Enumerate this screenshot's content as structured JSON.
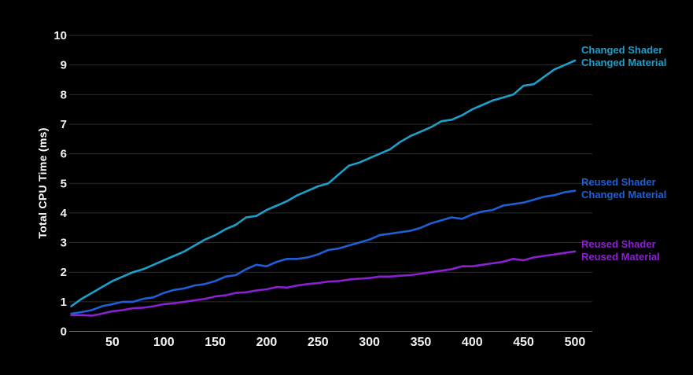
{
  "chart_data": {
    "type": "line",
    "title": "",
    "xlabel": "",
    "ylabel": "Total CPU Time (ms)",
    "xlim": [
      10,
      516
    ],
    "ylim": [
      0,
      10
    ],
    "x_ticks": [
      50,
      100,
      150,
      200,
      250,
      300,
      350,
      400,
      450,
      500
    ],
    "y_ticks": [
      0,
      1,
      2,
      3,
      4,
      5,
      6,
      7,
      8,
      9,
      10
    ],
    "grid": "horizontal-only",
    "background_color": "#000000",
    "gridline_color": "#2d2d2d",
    "axis_line_color": "#6a6a6a",
    "tick_label_color": "#f2f2f2",
    "legend_position": "right-of-line-ends",
    "x": [
      10,
      20,
      30,
      40,
      50,
      60,
      70,
      80,
      90,
      100,
      110,
      120,
      130,
      140,
      150,
      160,
      170,
      180,
      190,
      200,
      210,
      220,
      230,
      240,
      250,
      260,
      270,
      280,
      290,
      300,
      310,
      320,
      330,
      340,
      350,
      360,
      370,
      380,
      390,
      400,
      410,
      420,
      430,
      440,
      450,
      460,
      470,
      480,
      490,
      500
    ],
    "series": [
      {
        "name": "Changed Shader Changed Material",
        "legend_lines": [
          "Changed Shader",
          "Changed Material"
        ],
        "color": "#1d9fca",
        "values": [
          0.85,
          1.1,
          1.3,
          1.5,
          1.7,
          1.85,
          2.0,
          2.1,
          2.25,
          2.4,
          2.55,
          2.7,
          2.9,
          3.1,
          3.25,
          3.45,
          3.6,
          3.85,
          3.9,
          4.1,
          4.25,
          4.4,
          4.6,
          4.75,
          4.9,
          5.0,
          5.3,
          5.6,
          5.7,
          5.85,
          6.0,
          6.15,
          6.4,
          6.6,
          6.75,
          6.9,
          7.1,
          7.15,
          7.3,
          7.5,
          7.65,
          7.8,
          7.9,
          8.0,
          8.3,
          8.35,
          8.6,
          8.85,
          9.0,
          9.15
        ]
      },
      {
        "name": "Reused Shader Changed Material",
        "legend_lines": [
          "Reused Shader",
          "Changed Material"
        ],
        "color": "#1e5fd8",
        "values": [
          0.6,
          0.65,
          0.72,
          0.85,
          0.92,
          1.0,
          1.0,
          1.1,
          1.15,
          1.3,
          1.4,
          1.45,
          1.55,
          1.6,
          1.7,
          1.85,
          1.9,
          2.1,
          2.25,
          2.2,
          2.35,
          2.45,
          2.45,
          2.5,
          2.6,
          2.75,
          2.8,
          2.9,
          3.0,
          3.1,
          3.25,
          3.3,
          3.35,
          3.4,
          3.5,
          3.65,
          3.75,
          3.85,
          3.8,
          3.95,
          4.05,
          4.1,
          4.25,
          4.3,
          4.35,
          4.45,
          4.55,
          4.6,
          4.7,
          4.75
        ]
      },
      {
        "name": "Reused Shader Reused Material",
        "legend_lines": [
          "Reused Shader",
          "Reused Material"
        ],
        "color": "#8c1fd4",
        "values": [
          0.55,
          0.55,
          0.53,
          0.6,
          0.68,
          0.72,
          0.78,
          0.8,
          0.85,
          0.92,
          0.95,
          1.0,
          1.05,
          1.1,
          1.18,
          1.22,
          1.3,
          1.32,
          1.38,
          1.42,
          1.5,
          1.48,
          1.55,
          1.6,
          1.63,
          1.68,
          1.7,
          1.75,
          1.78,
          1.8,
          1.85,
          1.85,
          1.88,
          1.9,
          1.95,
          2.0,
          2.05,
          2.1,
          2.2,
          2.2,
          2.25,
          2.3,
          2.35,
          2.45,
          2.4,
          2.5,
          2.55,
          2.6,
          2.65,
          2.7
        ]
      }
    ]
  }
}
